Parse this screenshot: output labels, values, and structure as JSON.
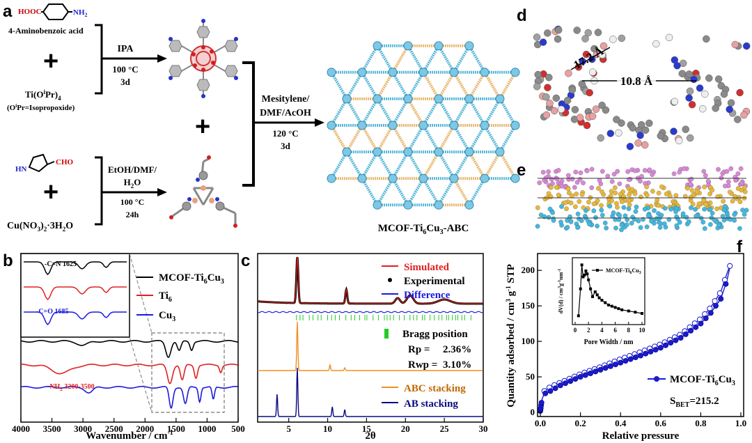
{
  "panel_a": {
    "label": "a",
    "reactant_top_formula_left": "HOOC",
    "reactant_top_formula_right": "NH",
    "reactant_top_formula_sub": "2",
    "reactant_top_name": "4-Aminobenzoic acid",
    "plus": "+",
    "ti_reagent": "Ti(O",
    "ti_reagent_sup": "i",
    "ti_reagent_end": "Pr)",
    "ti_reagent_sub": "4",
    "ti_note": "(O",
    "ti_note_sup": "i",
    "ti_note_end": "Pr=Isopropoxide)",
    "arrow1_top": "IPA",
    "arrow1_temp": "100 °C",
    "arrow1_time": "3d",
    "pyrrole_cho": "CHO",
    "pyrrole_hn": "HN",
    "cu_reagent": "Cu(NO",
    "cu_reagent_sub1": "3",
    "cu_reagent_mid": ")",
    "cu_reagent_sub2": "2",
    "cu_reagent_end": "·3H",
    "cu_reagent_sub3": "2",
    "cu_reagent_o": "O",
    "arrow2_top": "EtOH/DMF/",
    "arrow2_mid": "H",
    "arrow2_mid_sub": "2",
    "arrow2_mid_end": "O",
    "arrow2_temp": "100 °C",
    "arrow2_time": "24h",
    "arrow3_top1": "Mesitylene/",
    "arrow3_top2": "DMF/AcOH",
    "arrow3_temp": "120 °C",
    "arrow3_time": "3d",
    "product": "MCOF-Ti",
    "product_sub1": "6",
    "product_mid": "Cu",
    "product_sub2": "3",
    "product_end": "-ABC"
  },
  "panel_d": {
    "label": "d",
    "dim1": "17.2 Å",
    "dim2": "10.8 Å"
  },
  "panel_e": {
    "label": "e"
  },
  "colors": {
    "red": "#e02020",
    "blue": "#1a1adc",
    "black": "#000000",
    "orange": "#f0901c",
    "navy": "#0a0a80",
    "green": "#22cc22",
    "pink": "#d888d8",
    "gold": "#e8b83a",
    "cyan": "#42b8e0"
  },
  "chart_data": [
    {
      "panel": "b",
      "type": "line",
      "xlabel": "Wavenumber / cm",
      "xlabel_sup": "-1",
      "xlim": [
        4000,
        500
      ],
      "x_ticks": [
        "4000",
        "3500",
        "3000",
        "2500",
        "2000",
        "1500",
        "1000",
        "500"
      ],
      "series": [
        {
          "name": "MCOF-Ti",
          "name_sub1": "6",
          "name_mid": "Cu",
          "name_sub2": "3",
          "color": "#000000"
        },
        {
          "name": "Ti",
          "name_sub1": "6",
          "color": "#e02020"
        },
        {
          "name": "Cu",
          "name_sub1": "3",
          "color": "#1a1adc"
        }
      ],
      "annotations": [
        "-C=N 1625",
        "-C=O 1685",
        "-NH",
        "2",
        " 3200-3500"
      ]
    },
    {
      "panel": "c",
      "type": "line",
      "xlabel": "2θ",
      "xlim": [
        1,
        30
      ],
      "x_ticks": [
        "5",
        "10",
        "15",
        "20",
        "25",
        "30"
      ],
      "series": [
        {
          "name": "Simulated",
          "color": "#e02020"
        },
        {
          "name": "Experimental",
          "color": "#000000"
        },
        {
          "name": "Difference",
          "color": "#1a1adc"
        },
        {
          "name": "Bragg position",
          "color": "#22cc22"
        },
        {
          "name": "ABC stacking",
          "color": "#f0901c"
        },
        {
          "name": "AB stacking",
          "color": "#0a0a80"
        }
      ],
      "peaks_ABC": [
        6.1,
        10.3,
        12.2
      ],
      "peaks_AB": [
        3.5,
        6.1,
        10.6,
        12.2
      ],
      "rp_label": "Rp  =",
      "rp_value": "2.36%",
      "rwp_label": "Rwp =",
      "rwp_value": "3.10%"
    },
    {
      "panel": "f",
      "type": "line",
      "xlabel": "Relative pressure",
      "ylabel": "Quantity adsorbed / cm",
      "ylabel_sup": "3",
      "ylabel_mid": " g",
      "ylabel_sup2": "-1",
      "ylabel_end": " STP",
      "xlim": [
        0,
        1.0
      ],
      "ylim": [
        0,
        210
      ],
      "x_ticks": [
        "0.0",
        "0.2",
        "0.4",
        "0.6",
        "0.8",
        "1.0"
      ],
      "y_ticks": [
        "0",
        "50",
        "100",
        "150",
        "200"
      ],
      "series": [
        {
          "name": "MCOF-Ti",
          "name_sub1": "6",
          "name_mid": "Cu",
          "name_sub2": "3",
          "color": "#1a1ad0"
        }
      ],
      "adsorption": [
        [
          0.0,
          2
        ],
        [
          0.005,
          12
        ],
        [
          0.01,
          20
        ],
        [
          0.02,
          26
        ],
        [
          0.05,
          30
        ],
        [
          0.1,
          38
        ],
        [
          0.2,
          50
        ],
        [
          0.3,
          60
        ],
        [
          0.4,
          70
        ],
        [
          0.5,
          80
        ],
        [
          0.6,
          91
        ],
        [
          0.7,
          105
        ],
        [
          0.8,
          125
        ],
        [
          0.85,
          140
        ],
        [
          0.9,
          160
        ],
        [
          0.93,
          185
        ],
        [
          0.95,
          210
        ]
      ],
      "desorption": [
        [
          0.95,
          210
        ],
        [
          0.93,
          195
        ],
        [
          0.9,
          170
        ],
        [
          0.85,
          148
        ],
        [
          0.8,
          132
        ],
        [
          0.7,
          110
        ],
        [
          0.6,
          96
        ],
        [
          0.5,
          85
        ],
        [
          0.4,
          75
        ],
        [
          0.3,
          64
        ],
        [
          0.2,
          54
        ],
        [
          0.1,
          42
        ],
        [
          0.05,
          36
        ],
        [
          0.02,
          30
        ]
      ],
      "sbet_label": "S",
      "sbet_sub": "BET",
      "sbet_value": "=215.2",
      "inset": {
        "xlabel": "Pore Width / nm",
        "ylabel": "dV(d) / cm",
        "ylabel_sup": "3",
        "ylabel_mid": "g",
        "ylabel_sup2": "-1",
        "ylabel_mid2": "nm",
        "ylabel_sup3": "-1",
        "xlim": [
          0,
          10
        ],
        "x_ticks": [
          "0",
          "2",
          "4",
          "6",
          "8",
          "10"
        ],
        "legend": "MCOF-Ti",
        "legend_sub1": "6",
        "legend_mid": "Cu",
        "legend_sub2": "3",
        "points": [
          [
            0.5,
            0.1
          ],
          [
            0.8,
            0.55
          ],
          [
            1.0,
            0.95
          ],
          [
            1.2,
            0.75
          ],
          [
            1.4,
            0.78
          ],
          [
            1.6,
            0.85
          ],
          [
            1.8,
            0.8
          ],
          [
            2.0,
            0.7
          ],
          [
            2.3,
            0.55
          ],
          [
            2.6,
            0.42
          ],
          [
            3.0,
            0.5
          ],
          [
            3.3,
            0.45
          ],
          [
            3.6,
            0.4
          ],
          [
            4.0,
            0.36
          ],
          [
            4.5,
            0.32
          ],
          [
            5.0,
            0.28
          ],
          [
            5.5,
            0.26
          ],
          [
            6.0,
            0.24
          ],
          [
            6.5,
            0.22
          ],
          [
            7.0,
            0.2
          ],
          [
            8.0,
            0.18
          ],
          [
            9.0,
            0.16
          ],
          [
            10.0,
            0.14
          ]
        ]
      }
    }
  ],
  "panel_b_label": "b",
  "panel_c_label": "c",
  "panel_f_label": "f"
}
